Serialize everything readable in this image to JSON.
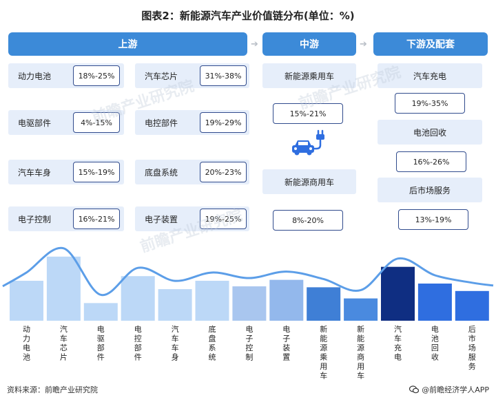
{
  "title": "图表2：新能源汽车产业价值链分布(单位：%)",
  "headers": {
    "upstream": "上游",
    "midstream": "中游",
    "downstream": "下游及配套"
  },
  "upstream_items": [
    {
      "label": "动力电池",
      "pct": "18%-25%"
    },
    {
      "label": "汽车芯片",
      "pct": "31%-38%"
    },
    {
      "label": "电驱部件",
      "pct": "4%-15%"
    },
    {
      "label": "电控部件",
      "pct": "19%-29%"
    },
    {
      "label": "汽车车身",
      "pct": "15%-19%"
    },
    {
      "label": "底盘系统",
      "pct": "20%-23%"
    },
    {
      "label": "电子控制",
      "pct": "16%-21%"
    },
    {
      "label": "电子装置",
      "pct": "19%-25%"
    }
  ],
  "midstream_items": [
    {
      "label": "新能源乘用车",
      "pct": "15%-21%"
    },
    {
      "label": "新能源商用车",
      "pct": "8%-20%"
    }
  ],
  "downstream_items": [
    {
      "label": "汽车充电",
      "pct": "19%-35%"
    },
    {
      "label": "电池回收",
      "pct": "16%-26%"
    },
    {
      "label": "后市场服务",
      "pct": "13%-19%"
    }
  ],
  "icons": {
    "ev": "ev-charging-car-icon",
    "wechat": "wechat-icon"
  },
  "watermark": "前瞻产业研究院",
  "source": "资料来源：前瞻产业研究院",
  "brand": "@前瞻经济学人APP",
  "chart_data": {
    "type": "bar",
    "categories": [
      "动力电池",
      "汽车芯片",
      "电驱部件",
      "电控部件",
      "汽车车身",
      "底盘系统",
      "电子控制",
      "电子装置",
      "新能源乘用车",
      "新能源商用车",
      "汽车充电",
      "电池回收",
      "后市场服务"
    ],
    "values": [
      21.5,
      34.5,
      9.5,
      24,
      17,
      21.5,
      18.5,
      22,
      18,
      12,
      29,
      20,
      16
    ],
    "colors": [
      "#bcd8f7",
      "#bcd8f7",
      "#bcd8f7",
      "#bcd8f7",
      "#bcd8f7",
      "#bcd8f7",
      "#a9c6ef",
      "#93b8ec",
      "#3f7fd6",
      "#4a8adf",
      "#0f2e82",
      "#2f6ee0",
      "#2f6ee0"
    ],
    "curve_color": "#5c9ee8",
    "title": "",
    "xlabel": "",
    "ylabel": "",
    "ylim": [
      0,
      40
    ],
    "grid": false
  }
}
